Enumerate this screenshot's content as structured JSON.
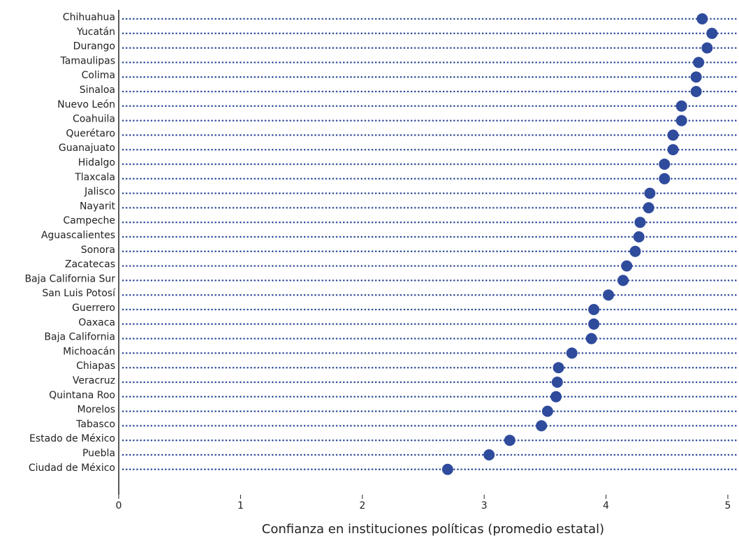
{
  "chart_data": {
    "type": "dot",
    "x_label": "Confianza en instituciones políticas (promedio estatal)",
    "categories": [
      "Chihuahua",
      "Yucatán",
      "Durango",
      "Tamaulipas",
      "Colima",
      "Sinaloa",
      "Nuevo León",
      "Coahuila",
      "Querétaro",
      "Guanajuato",
      "Hidalgo",
      "Tlaxcala",
      "Jalisco",
      "Nayarit",
      "Campeche",
      "Aguascalientes",
      "Sonora",
      "Zacatecas",
      "Baja California Sur",
      "San Luis Potosí",
      "Guerrero",
      "Oaxaca",
      "Baja California",
      "Michoacán",
      "Chiapas",
      "Veracruz",
      "Quintana Roo",
      "Morelos",
      "Tabasco",
      "Estado de México",
      "Puebla",
      "Ciudad de México"
    ],
    "values": [
      4.79,
      4.87,
      4.83,
      4.76,
      4.74,
      4.74,
      4.62,
      4.62,
      4.55,
      4.55,
      4.48,
      4.48,
      4.36,
      4.35,
      4.28,
      4.27,
      4.24,
      4.17,
      4.14,
      4.02,
      3.9,
      3.9,
      3.88,
      3.72,
      3.61,
      3.6,
      3.59,
      3.52,
      3.47,
      3.21,
      3.04,
      2.7
    ],
    "color": "#2f4b9c",
    "xlim": [
      0,
      5
    ],
    "xticks": [
      0,
      1,
      2,
      3,
      4,
      5
    ]
  }
}
